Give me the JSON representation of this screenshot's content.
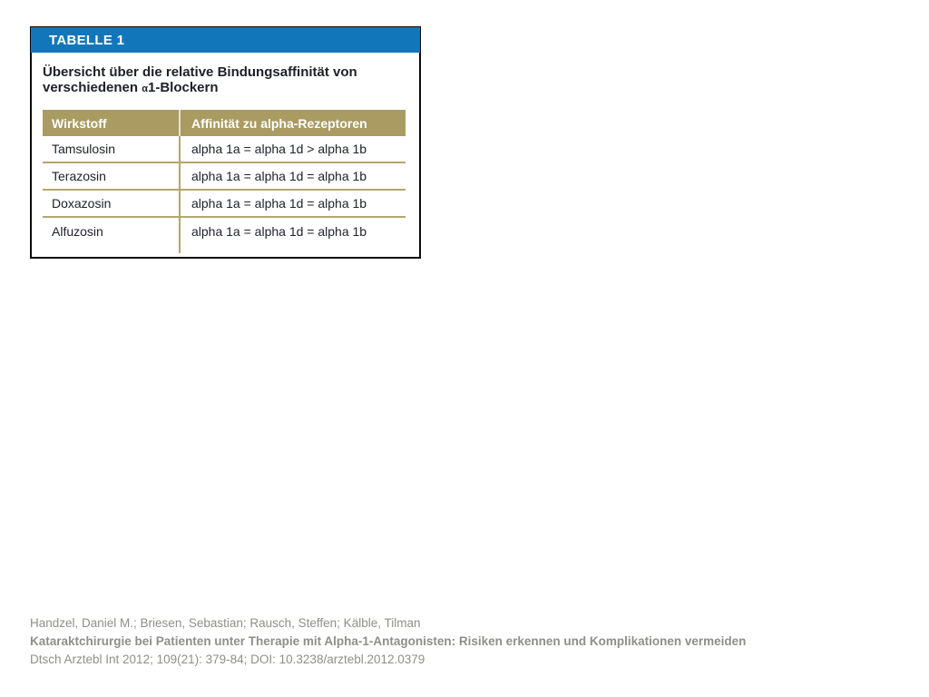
{
  "figure": {
    "banner_label": "TABELLE 1",
    "title_line1": "Übersicht über die relative Bindungsaffinität von",
    "title_line2_prefix": "verschiedenen ",
    "title_line2_alpha": "α",
    "title_line2_suffix": "1-Blockern"
  },
  "table": {
    "columns": [
      "Wirkstoff",
      "Affinität zu alpha-Rezeptoren"
    ],
    "rows": [
      {
        "wirkstoff": "Tamsulosin",
        "affinitaet": "alpha 1a = alpha 1d > alpha 1b"
      },
      {
        "wirkstoff": "Terazosin",
        "affinitaet": "alpha 1a = alpha 1d = alpha 1b"
      },
      {
        "wirkstoff": "Doxazosin",
        "affinitaet": "alpha 1a = alpha 1d = alpha 1b"
      },
      {
        "wirkstoff": "Alfuzosin",
        "affinitaet": "alpha 1a = alpha 1d = alpha 1b"
      }
    ]
  },
  "citation": {
    "authors": "Handzel, Daniel M.; Briesen, Sebastian; Rausch, Steffen; Kälble, Tilman",
    "article_title": "Kataraktchirurgie bei Patienten unter Therapie mit Alpha-1-Antagonisten: Risiken erkennen und Komplikationen vermeiden",
    "source": "Dtsch Arztebl Int 2012; 109(21): 379-84; DOI: 10.3238/arztebl.2012.0379"
  },
  "colors": {
    "banner_blue": "#1277ba",
    "table_header_olive": "#a99b62",
    "separator_olive": "#b3a671",
    "body_text_dark": "#20232b",
    "citation_gray": "#8f8e8a"
  }
}
